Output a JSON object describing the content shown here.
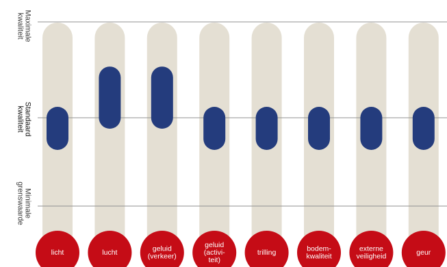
{
  "chart_data": {
    "type": "range",
    "title": "",
    "levels": [
      {
        "key": "max",
        "label": [
          "Maximale",
          "kwaliteit"
        ]
      },
      {
        "key": "standard",
        "label": [
          "Standaard",
          "kwaliteit"
        ]
      },
      {
        "key": "min",
        "label": [
          "Minimale",
          "grenswaarde"
        ]
      }
    ],
    "scale": {
      "min_value": 0,
      "standard_value": 1,
      "max_value": 2
    },
    "categories": [
      {
        "label": [
          "licht"
        ],
        "low": 0.76,
        "high": 1.0
      },
      {
        "label": [
          "lucht"
        ],
        "low": 1.0,
        "high": 1.42
      },
      {
        "label": [
          "geluid",
          "(verkeer)"
        ],
        "low": 1.0,
        "high": 1.42
      },
      {
        "label": [
          "geluid",
          "(activi-",
          "teit)"
        ],
        "low": 0.76,
        "high": 1.0
      },
      {
        "label": [
          "trilling"
        ],
        "low": 0.76,
        "high": 1.0
      },
      {
        "label": [
          "bodem-",
          "kwaliteit"
        ],
        "low": 0.76,
        "high": 1.0
      },
      {
        "label": [
          "externe",
          "veiligheid"
        ],
        "low": 0.76,
        "high": 1.0
      },
      {
        "label": [
          "geur"
        ],
        "low": 0.76,
        "high": 1.0
      }
    ],
    "colors": {
      "track": "#e4dfd3",
      "range": "#243c7d",
      "circle": "#c50c16",
      "gridline": "#909090"
    }
  }
}
